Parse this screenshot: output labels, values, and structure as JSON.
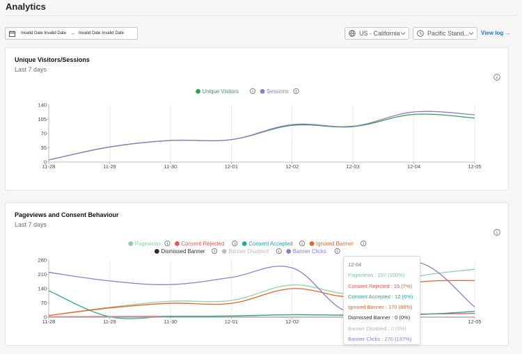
{
  "page": {
    "title": "Analytics"
  },
  "filters": {
    "date_from": "Invalid Date Invalid Date",
    "date_to": "Invalid Date Invalid Date",
    "date_separator": "–",
    "region": "US - California",
    "timezone": "Pacific Stand...",
    "view_log": "View log →"
  },
  "colors": {
    "unique_visitors": "#2e9e5b",
    "sessions": "#8e7cc3",
    "pageviews": "#8fd0a4",
    "consent_rejected": "#e05a4f",
    "consent_accepted": "#26a69a",
    "ignored_banner": "#e8622a",
    "dismissed_banner": "#2b2b2b",
    "banner_disabled": "#bdbdbd",
    "banner_clicks": "#8c7ad1",
    "link": "#1a73e8"
  },
  "icons": {
    "calendar": "calendar-icon",
    "globe": "globe-icon",
    "clock": "clock-icon",
    "chevron": "chevron-down-icon",
    "info": "info-icon"
  },
  "card1": {
    "title": "Unique Visitors/Sessions",
    "subtitle": "Last 7 days",
    "chart_data": {
      "type": "line",
      "x": [
        "11-28",
        "11-29",
        "11-30",
        "12-01",
        "12-02",
        "12-03",
        "12-04",
        "12-05"
      ],
      "y_ticks": [
        0,
        35,
        70,
        105,
        140
      ],
      "ylim": [
        0,
        140
      ],
      "legend_position": "top-center",
      "series": [
        {
          "name": "Unique Visitors",
          "key": "unique_visitors",
          "values": [
            5,
            37,
            53,
            55,
            90,
            87,
            117,
            108
          ]
        },
        {
          "name": "Sessions",
          "key": "sessions",
          "values": [
            5,
            37,
            53,
            55,
            92,
            88,
            123,
            116
          ]
        }
      ]
    }
  },
  "card2": {
    "title": "Pageviews and Consent Behaviour",
    "subtitle": "Last 7 days",
    "chart_data": {
      "type": "line",
      "x": [
        "11-28",
        "11-29",
        "11-30",
        "12-01",
        "12-02",
        "12-03",
        "12-04",
        "12-05"
      ],
      "y_ticks": [
        0,
        70,
        140,
        210,
        280
      ],
      "ylim": [
        0,
        280
      ],
      "legend_position": "top-center",
      "series": [
        {
          "name": "Pageviews",
          "key": "pageviews",
          "values": [
            8,
            48,
            78,
            82,
            158,
            115,
            197,
            235
          ]
        },
        {
          "name": "Consent Rejected",
          "key": "consent_rejected",
          "values": [
            2,
            3,
            4,
            5,
            12,
            10,
            15,
            18
          ]
        },
        {
          "name": "Consent Accepted",
          "key": "consent_accepted",
          "values": [
            130,
            2,
            4,
            6,
            12,
            9,
            12,
            28
          ]
        },
        {
          "name": "Ignored Banner",
          "key": "ignored_banner",
          "values": [
            8,
            45,
            68,
            68,
            140,
            100,
            170,
            180
          ]
        },
        {
          "name": "Dismissed Banner",
          "key": "dismissed_banner",
          "values": [
            0,
            0,
            0,
            0,
            0,
            0,
            0,
            0
          ]
        },
        {
          "name": "Banner Disabled",
          "key": "banner_disabled",
          "values": [
            0,
            0,
            0,
            0,
            0,
            0,
            0,
            0
          ]
        },
        {
          "name": "Banner Clicks",
          "key": "banner_clicks",
          "values": [
            220,
            178,
            160,
            195,
            242,
            25,
            270,
            50
          ]
        }
      ],
      "tooltip": {
        "date": "12-04",
        "lines": [
          "Pageviews : 197 (100%)",
          "Consent Rejected : 15 (7%)",
          "Consent Accepted : 12 (6%)",
          "Ignored Banner : 170 (86%)",
          "Dismissed Banner : 0 (0%)",
          "Banner Disabled : 0 (0%)",
          "Banner Clicks : 270 (137%)"
        ]
      }
    }
  }
}
